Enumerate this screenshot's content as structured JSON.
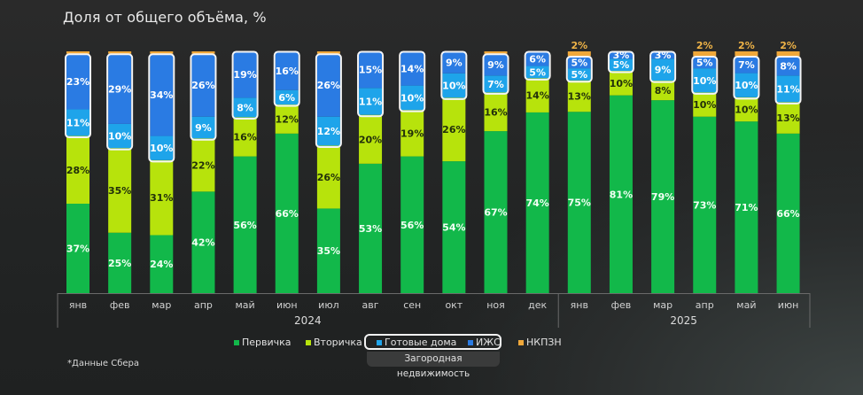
{
  "title": "Доля от общего объёма, %",
  "footnote": "*Данные Сбера",
  "legend": {
    "items": [
      {
        "key": "primary",
        "label": "Первичка",
        "color": "#12b84a"
      },
      {
        "key": "secondary",
        "label": "Вторичка",
        "color": "#b7e30c"
      },
      {
        "key": "ready_houses",
        "label": "Готовые дома",
        "color": "#1ea4ea"
      },
      {
        "key": "izhs",
        "label": "ИЖС",
        "color": "#2a7be3"
      },
      {
        "key": "nkpzn",
        "label": "НКПЗН",
        "color": "#f0a83a"
      }
    ],
    "group_label": "Загородная недвижимость"
  },
  "chart_data": {
    "type": "bar",
    "stacked": true,
    "title": "Доля от общего объёма, %",
    "xlabel": "",
    "ylabel": "",
    "ylim": [
      0,
      100
    ],
    "grid": false,
    "legend_position": "bottom",
    "categories": [
      "янв",
      "фев",
      "мар",
      "апр",
      "май",
      "июн",
      "июл",
      "авг",
      "сен",
      "окт",
      "ноя",
      "дек",
      "янв",
      "фев",
      "мар",
      "апр",
      "май",
      "июн"
    ],
    "year_groups": [
      {
        "label": "2024",
        "count": 12
      },
      {
        "label": "2025",
        "count": 6
      }
    ],
    "series": [
      {
        "name": "Первичка",
        "key": "primary",
        "color": "#12b84a",
        "label_color": "#f2fff4",
        "values": [
          37,
          25,
          24,
          42,
          56,
          66,
          35,
          53,
          56,
          54,
          67,
          74,
          75,
          81,
          79,
          73,
          71,
          66
        ]
      },
      {
        "name": "Вторичка",
        "key": "secondary",
        "color": "#b7e30c",
        "label_color": "#22300a",
        "values": [
          28,
          35,
          31,
          22,
          16,
          12,
          26,
          20,
          19,
          26,
          16,
          14,
          13,
          10,
          8,
          10,
          10,
          13
        ]
      },
      {
        "name": "Готовые дома",
        "key": "ready_houses",
        "color": "#1ea4ea",
        "label_color": "#ffffff",
        "values": [
          11,
          10,
          10,
          9,
          8,
          6,
          12,
          11,
          10,
          10,
          7,
          5,
          5,
          5,
          9,
          10,
          10,
          11
        ]
      },
      {
        "name": "ИЖС",
        "key": "izhs",
        "color": "#2a7be3",
        "label_color": "#ffffff",
        "values": [
          23,
          29,
          34,
          26,
          19,
          16,
          26,
          15,
          14,
          9,
          9,
          6,
          5,
          3,
          3,
          5,
          7,
          8
        ]
      },
      {
        "name": "НКПЗН",
        "key": "nkpzn",
        "color": "#f0a83a",
        "label_color": "#f0b447",
        "values": [
          1,
          1,
          1,
          1,
          0,
          0,
          1,
          0,
          0,
          0,
          1,
          0,
          2,
          0,
          0,
          2,
          2,
          2
        ],
        "labels_shown_for": [
          12,
          15,
          16,
          17
        ]
      }
    ],
    "group_outline": {
      "series": [
        "Готовые дома",
        "ИЖС"
      ],
      "label": "Загородная недвижимость"
    }
  }
}
